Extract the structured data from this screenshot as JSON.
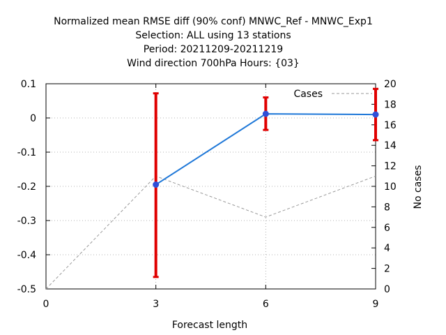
{
  "chart_data": {
    "type": "line",
    "title_lines": [
      "Normalized mean RMSE diff (90% conf) MNWC_Ref - MNWC_Exp1",
      "Selection: ALL using    13 stations",
      "Period: 20211209-20211219",
      "Wind direction 700hPa   Hours: {03}"
    ],
    "xlabel": "Forecast length",
    "ylabel": "",
    "y2label": "No cases",
    "x_ticks": [
      "0",
      "3",
      "6",
      "9"
    ],
    "y_ticks": [
      "0.1",
      "0",
      "-0.1",
      "-0.2",
      "-0.3",
      "-0.4",
      "-0.5"
    ],
    "y2_ticks": [
      "20",
      "18",
      "16",
      "14",
      "12",
      "10",
      "8",
      "6",
      "4",
      "2",
      "0"
    ],
    "xlim": [
      0,
      9
    ],
    "ylim": [
      -0.5,
      0.1
    ],
    "y2lim": [
      0,
      20
    ],
    "grid": true,
    "legend_position": "top-right",
    "series": [
      {
        "name": "",
        "axis": "y",
        "color": "#1f78d8",
        "x": [
          3,
          6,
          9
        ],
        "values": [
          -0.195,
          0.012,
          0.01
        ],
        "error_low": [
          -0.465,
          -0.035,
          -0.065
        ],
        "error_high": [
          0.072,
          0.06,
          0.085
        ],
        "error_color": "#e00000"
      },
      {
        "name": "Cases",
        "axis": "y2",
        "color": "#999999",
        "dashed": true,
        "x": [
          0,
          3,
          6,
          9
        ],
        "values": [
          0,
          11,
          7,
          11
        ]
      }
    ]
  }
}
